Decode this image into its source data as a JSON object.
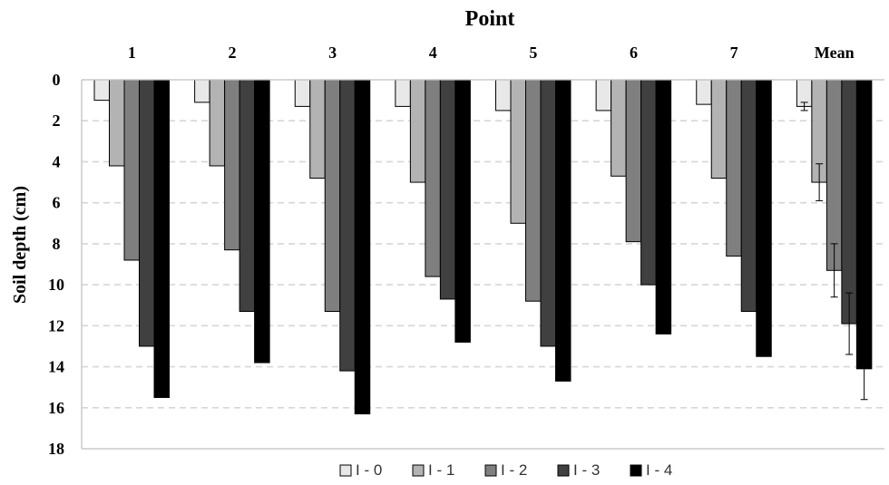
{
  "chart_data": {
    "type": "bar",
    "orientation": "vertical-inverted",
    "x_axis_title": "Point",
    "y_axis_title": "Soil depth  (cm)",
    "categories": [
      "1",
      "2",
      "3",
      "4",
      "5",
      "6",
      "7",
      "Mean"
    ],
    "y_ticks": [
      "0",
      "2",
      "4",
      "6",
      "8",
      "10",
      "12",
      "14",
      "16",
      "18"
    ],
    "ylim": [
      0,
      18
    ],
    "y_inverted": true,
    "grid": "horizontal dashed",
    "legend_position": "bottom",
    "series": [
      {
        "name": "I - 0",
        "color": "#e8e8e8",
        "values": [
          1.0,
          1.1,
          1.3,
          1.3,
          1.5,
          1.5,
          1.2,
          1.3
        ],
        "error_mean": 0.2
      },
      {
        "name": "I - 1",
        "color": "#b3b3b3",
        "values": [
          4.2,
          4.2,
          4.8,
          5.0,
          7.0,
          4.7,
          4.8,
          5.0
        ],
        "error_mean": 0.9
      },
      {
        "name": "I - 2",
        "color": "#7f7f7f",
        "values": [
          8.8,
          8.3,
          11.3,
          9.6,
          10.8,
          7.9,
          8.6,
          9.3
        ],
        "error_mean": 1.3
      },
      {
        "name": "I - 3",
        "color": "#404040",
        "values": [
          13.0,
          11.3,
          14.2,
          10.7,
          13.0,
          10.0,
          11.3,
          11.9
        ],
        "error_mean": 1.5
      },
      {
        "name": "I - 4",
        "color": "#000000",
        "values": [
          15.5,
          13.8,
          16.3,
          12.8,
          14.7,
          12.4,
          13.5,
          14.1
        ],
        "error_mean": 1.5
      }
    ]
  }
}
